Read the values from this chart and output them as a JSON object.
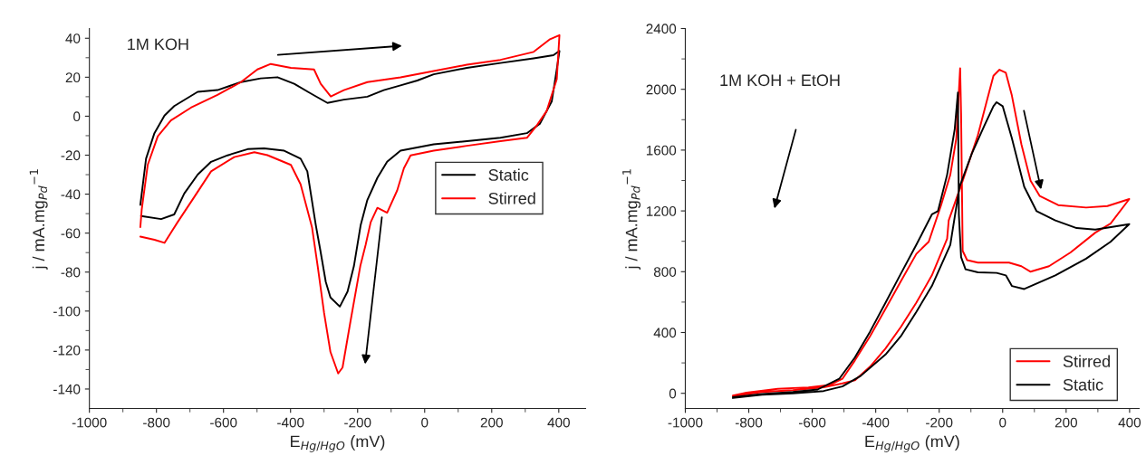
{
  "chart_data": [
    {
      "type": "line",
      "annotations": [
        "1M KOH"
      ],
      "xlabel": "E$_{Hg/HgO}$ (mV)",
      "ylabel": "j / mA.mg$_{Pd}$$^{−1}$",
      "xlim": [
        -1000,
        480
      ],
      "ylim": [
        -150,
        45
      ],
      "xticks": [
        -1000,
        -800,
        -600,
        -400,
        -200,
        0,
        200,
        400
      ],
      "yticks": [
        -140,
        -120,
        -100,
        -80,
        -60,
        -40,
        -20,
        0,
        20,
        40
      ],
      "legend": "center right",
      "grid": false,
      "series": [
        {
          "name": "Static",
          "color": "#000000",
          "x": [
            -848,
            -831,
            -806,
            -776,
            -747,
            -677,
            -618,
            -548,
            -489,
            -439,
            -389,
            -340,
            -290,
            -241,
            -171,
            -122,
            -72,
            -22,
            27,
            126,
            226,
            325,
            384,
            402,
            394,
            379,
            344,
            305,
            226,
            126,
            27,
            -72,
            -112,
            -141,
            -171,
            -191,
            -211,
            -230,
            -253,
            -281,
            -295,
            -311,
            -325,
            -350,
            -370,
            -419,
            -479,
            -528,
            -588,
            -637,
            -677,
            -717,
            -747,
            -786,
            -846
          ],
          "values": [
            -45.5,
            -21.8,
            -8.7,
            0.3,
            5.2,
            12.5,
            13.4,
            17.5,
            19.4,
            20,
            16.6,
            11.7,
            6.8,
            8.5,
            10,
            13.4,
            15.8,
            18.3,
            21.5,
            24.8,
            27.3,
            29.7,
            31.3,
            33.5,
            24,
            7.6,
            -3.8,
            -8.7,
            -11.1,
            -12.8,
            -14.4,
            -17.7,
            -23.4,
            -31.6,
            -43,
            -56,
            -76.9,
            -90,
            -97.7,
            -93,
            -85,
            -69,
            -55.6,
            -28.3,
            -21.8,
            -17.7,
            -16.5,
            -16.9,
            -20.1,
            -23.4,
            -30,
            -39.7,
            -50.4,
            -52.8,
            -51.2
          ]
        },
        {
          "name": "Stirred",
          "color": "#ff0000",
          "x": [
            -848,
            -844,
            -826,
            -796,
            -757,
            -697,
            -618,
            -548,
            -499,
            -459,
            -399,
            -330,
            -310,
            -280,
            -241,
            -171,
            -72,
            27,
            126,
            226,
            325,
            374,
            402,
            394,
            364,
            335,
            305,
            226,
            126,
            27,
            -42,
            -62,
            -82,
            -112,
            -141,
            -161,
            -176,
            -192,
            -222,
            -245,
            -258,
            -281,
            -300,
            -319,
            -336,
            -370,
            -399,
            -469,
            -508,
            -568,
            -637,
            -687,
            -737,
            -776,
            -806,
            -848
          ],
          "values": [
            -56.9,
            -48,
            -25,
            -10.3,
            -2.2,
            4.4,
            10.9,
            17.5,
            24,
            26.8,
            24.8,
            24,
            16.6,
            10.1,
            13.4,
            17.5,
            19.9,
            23.2,
            26.4,
            28.9,
            33,
            39.5,
            41.6,
            19,
            2.7,
            -4.6,
            -11.1,
            -12.8,
            -15.2,
            -17.7,
            -20.1,
            -26.7,
            -38.1,
            -49.5,
            -47,
            -54.4,
            -66,
            -76.9,
            -106,
            -129,
            -132,
            -121,
            -101,
            -77,
            -57,
            -35,
            -25,
            -20,
            -18.5,
            -21,
            -28.3,
            -41.4,
            -54.4,
            -65,
            -63.4,
            -61.8
          ]
        }
      ]
    },
    {
      "type": "line",
      "annotations": [
        "1M KOH + EtOH"
      ],
      "xlabel": "E$_{Hg/HgO}$ (mV)",
      "ylabel": "j / mA.mg$_{Pd}$$^{−1}$",
      "xlim": [
        -1000,
        430
      ],
      "ylim": [
        -100,
        2400
      ],
      "xticks": [
        -1000,
        -800,
        -600,
        -400,
        -200,
        0,
        200,
        400
      ],
      "yticks": [
        0,
        400,
        800,
        1200,
        1600,
        2000,
        2400
      ],
      "legend": "bottom right",
      "grid": false,
      "series": [
        {
          "name": "Stirred",
          "color": "#ff0000",
          "x": [
            -850,
            -758,
            -661,
            -564,
            -505,
            -466,
            -418,
            -369,
            -321,
            -272,
            -223,
            -175,
            -170,
            -126,
            -78,
            -48,
            -29,
            -10,
            10,
            29,
            59,
            88,
            117,
            175,
            263,
            330,
            399,
            340,
            292,
            214,
            146,
            88,
            59,
            20,
            -29,
            -78,
            -112,
            -126,
            -131,
            -134,
            -146,
            -165,
            -194,
            -233,
            -272,
            -321,
            -369,
            -418,
            -466,
            -505,
            -544,
            -612,
            -709,
            -807,
            -850
          ],
          "values": [
            -19,
            9,
            21,
            39,
            65,
            85,
            175,
            295,
            436,
            596,
            776,
            1017,
            1137,
            1398,
            1699,
            1939,
            2089,
            2129,
            2109,
            1959,
            1638,
            1398,
            1298,
            1238,
            1222,
            1232,
            1278,
            1117,
            1057,
            927,
            836,
            800,
            836,
            860,
            860,
            860,
            876,
            937,
            1839,
            2139,
            1678,
            1438,
            1238,
            997,
            917,
            736,
            556,
            375,
            215,
            95,
            55,
            39,
            29,
            5,
            -15
          ]
        },
        {
          "name": "Static",
          "color": "#000000",
          "x": [
            -850,
            -758,
            -661,
            -564,
            -505,
            -447,
            -369,
            -321,
            -272,
            -223,
            -165,
            -136,
            -97,
            -58,
            -29,
            -19,
            0,
            29,
            68,
            107,
            166,
            233,
            292,
            399,
            340,
            263,
            166,
            68,
            29,
            10,
            -19,
            -78,
            -117,
            -131,
            -138,
            -141,
            -151,
            -175,
            -204,
            -223,
            -272,
            -321,
            -369,
            -418,
            -466,
            -515,
            -583,
            -661,
            -758,
            -850
          ],
          "values": [
            -31,
            -9,
            -1,
            15,
            45,
            115,
            255,
            375,
            536,
            706,
            977,
            1358,
            1578,
            1759,
            1889,
            1915,
            1889,
            1678,
            1358,
            1198,
            1137,
            1087,
            1077,
            1113,
            997,
            886,
            776,
            686,
            706,
            776,
            792,
            796,
            816,
            896,
            1177,
            1979,
            1739,
            1438,
            1198,
            1177,
            977,
            786,
            596,
            405,
            235,
            95,
            25,
            9,
            -5,
            -25
          ]
        }
      ]
    }
  ]
}
